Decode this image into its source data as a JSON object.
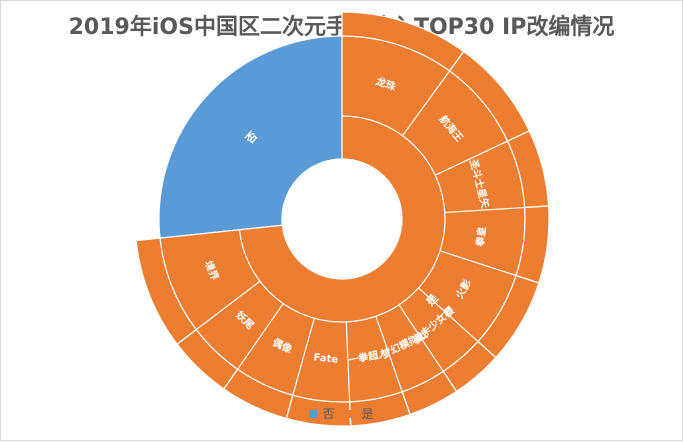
{
  "title": "2019年iOS中国区二次元手游收入TOP30 IP改编情况",
  "chart_data": {
    "type": "sunburst",
    "title": "2019年iOS中国区二次元手游收入TOP30 IP改编情况",
    "colors": {
      "否": "#5b9bd5",
      "是": "#ed7d31"
    },
    "inner": [
      {
        "name": "否",
        "label": "否",
        "value": 8
      },
      {
        "name": "是",
        "label": "是",
        "value": 22
      }
    ],
    "outer": [
      {
        "name": "龙珠",
        "parent": "是",
        "value": 3
      },
      {
        "name": "航海王",
        "parent": "是",
        "value": 2.4
      },
      {
        "name": "圣斗士星矢",
        "parent": "是",
        "value": 1.8
      },
      {
        "name": "拳皇",
        "parent": "是",
        "value": 1.8
      },
      {
        "name": "火影",
        "parent": "是",
        "value": 2
      },
      {
        "name": "魔卡少女樱",
        "parent": "是",
        "value": 1.2
      },
      {
        "name": "梦幻模拟战",
        "parent": "是",
        "value": 1.2
      },
      {
        "name": "一拳超人",
        "parent": "是",
        "value": 1.4
      },
      {
        "name": "Fate",
        "parent": "是",
        "value": 1.5
      },
      {
        "name": "偶像",
        "parent": "是",
        "value": 1.6
      },
      {
        "name": "妖尾",
        "parent": "是",
        "value": 1.5
      },
      {
        "name": "境界",
        "parent": "是",
        "value": 2.6
      }
    ],
    "legend": [
      "否",
      "是"
    ],
    "legend_position": "bottom"
  }
}
